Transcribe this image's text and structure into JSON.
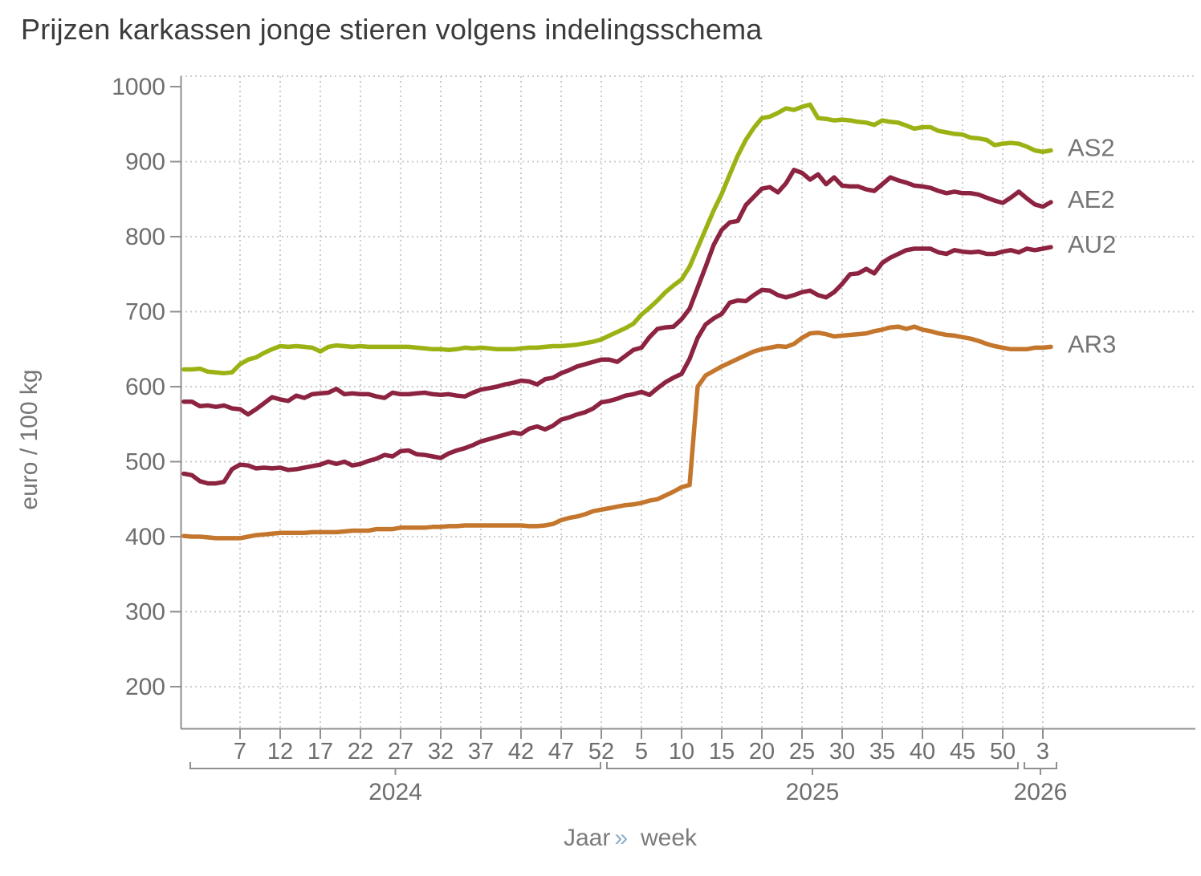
{
  "title": "Prijzen karkassen jonge stieren volgens indelingsschema",
  "y_axis": {
    "label": "euro / 100 kg",
    "ticks": [
      1000,
      900,
      800,
      700,
      600,
      500,
      400,
      300,
      200
    ]
  },
  "x_axis": {
    "label_left": "Jaar",
    "label_separator": "»",
    "label_right": "week",
    "year_groups": [
      {
        "year": "2024",
        "tick_labels": [
          7,
          12,
          17,
          22,
          27,
          32,
          37,
          42,
          47,
          52
        ]
      },
      {
        "year": "2025",
        "tick_labels": [
          5,
          10,
          15,
          20,
          25,
          30,
          35,
          40,
          45,
          50
        ]
      },
      {
        "year": "2026",
        "tick_labels": [
          3
        ]
      }
    ]
  },
  "colors": {
    "axis": "#909090",
    "grid": "#cbcbcb",
    "tick_text": "#6e6e6e",
    "series_label_text": "#757575",
    "title_text": "#3b3b3b",
    "separator_blue": "#8fadc6"
  },
  "chart_data": {
    "type": "line",
    "title": "Prijzen karkassen jonge stieren volgens indelingsschema",
    "xlabel": "Jaar » week",
    "ylabel": "euro / 100 kg",
    "x_start": "2023-W52",
    "x_end": "2026-W04",
    "x_step_weeks": 1,
    "ylim": [
      150,
      1015
    ],
    "grid": true,
    "legend_position": "right-of-line-end",
    "series": [
      {
        "name": "AS2",
        "color": "#9cb214",
        "values": [
          623,
          623,
          624,
          620,
          619,
          618,
          619,
          630,
          636,
          639,
          645,
          650,
          654,
          653,
          654,
          653,
          652,
          647,
          653,
          655,
          654,
          653,
          654,
          653,
          653,
          653,
          653,
          653,
          653,
          652,
          651,
          650,
          650,
          649,
          650,
          652,
          651,
          652,
          651,
          650,
          650,
          650,
          651,
          652,
          652,
          653,
          654,
          654,
          655,
          656,
          658,
          660,
          663,
          668,
          673,
          678,
          684,
          696,
          705,
          715,
          726,
          735,
          743,
          760,
          785,
          810,
          835,
          857,
          883,
          908,
          929,
          945,
          958,
          960,
          965,
          971,
          969,
          973,
          976,
          958,
          957,
          955,
          956,
          955,
          953,
          952,
          949,
          955,
          953,
          952,
          948,
          944,
          946,
          946,
          941,
          939,
          937,
          936,
          932,
          931,
          929,
          922,
          924,
          925,
          924,
          920,
          915,
          913,
          915
        ]
      },
      {
        "name": "AE2",
        "color": "#8c2340",
        "values": [
          580,
          580,
          574,
          575,
          573,
          575,
          571,
          570,
          563,
          570,
          578,
          586,
          583,
          581,
          588,
          585,
          590,
          591,
          592,
          597,
          590,
          591,
          590,
          590,
          587,
          585,
          592,
          590,
          590,
          591,
          592,
          590,
          589,
          590,
          588,
          587,
          592,
          596,
          598,
          600,
          603,
          605,
          608,
          607,
          603,
          610,
          612,
          618,
          622,
          627,
          630,
          633,
          636,
          636,
          633,
          641,
          649,
          652,
          666,
          677,
          679,
          680,
          690,
          704,
          732,
          760,
          789,
          809,
          819,
          821,
          842,
          853,
          864,
          866,
          859,
          871,
          889,
          885,
          876,
          883,
          870,
          879,
          868,
          867,
          867,
          863,
          861,
          870,
          879,
          875,
          872,
          868,
          867,
          865,
          861,
          858,
          860,
          858,
          858,
          856,
          852,
          848,
          845,
          852,
          860,
          851,
          843,
          840,
          846
        ]
      },
      {
        "name": "AU2",
        "color": "#8c2340",
        "values": [
          484,
          482,
          474,
          471,
          471,
          473,
          490,
          496,
          495,
          491,
          492,
          491,
          492,
          489,
          490,
          492,
          494,
          496,
          500,
          497,
          500,
          495,
          497,
          501,
          504,
          509,
          507,
          514,
          515,
          510,
          509,
          507,
          505,
          511,
          515,
          518,
          522,
          527,
          530,
          533,
          536,
          539,
          537,
          544,
          547,
          543,
          548,
          556,
          559,
          563,
          566,
          571,
          579,
          581,
          584,
          588,
          590,
          593,
          589,
          598,
          606,
          612,
          617,
          637,
          665,
          683,
          691,
          697,
          712,
          715,
          714,
          722,
          729,
          728,
          722,
          719,
          722,
          726,
          728,
          722,
          719,
          726,
          737,
          750,
          751,
          757,
          751,
          765,
          772,
          777,
          782,
          784,
          784,
          784,
          779,
          777,
          782,
          780,
          779,
          780,
          777,
          777,
          780,
          782,
          779,
          784,
          782,
          784,
          786
        ]
      },
      {
        "name": "AR3",
        "color": "#c4762c",
        "values": [
          401,
          400,
          400,
          399,
          398,
          398,
          398,
          398,
          400,
          402,
          403,
          404,
          405,
          405,
          405,
          405,
          406,
          406,
          406,
          406,
          407,
          408,
          408,
          408,
          410,
          410,
          410,
          412,
          412,
          412,
          412,
          413,
          413,
          414,
          414,
          415,
          415,
          415,
          415,
          415,
          415,
          415,
          415,
          414,
          414,
          415,
          417,
          422,
          425,
          427,
          430,
          434,
          436,
          438,
          440,
          442,
          443,
          445,
          448,
          450,
          455,
          460,
          466,
          469,
          600,
          615,
          621,
          627,
          632,
          637,
          642,
          647,
          650,
          652,
          654,
          653,
          657,
          665,
          671,
          672,
          670,
          667,
          668,
          669,
          670,
          671,
          674,
          676,
          679,
          680,
          677,
          680,
          676,
          674,
          671,
          669,
          668,
          666,
          664,
          661,
          657,
          654,
          652,
          650,
          650,
          650,
          652,
          652,
          653
        ]
      }
    ]
  }
}
